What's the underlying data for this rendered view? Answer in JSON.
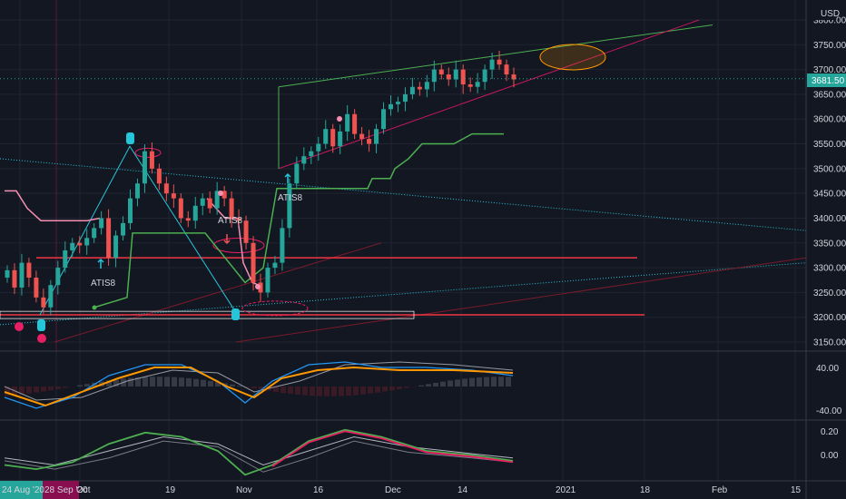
{
  "currency": "USD",
  "last_price": "3681.50",
  "main_axis_ticks": [
    "3800.00",
    "3750.00",
    "3700.00",
    "3650.00",
    "3600.00",
    "3550.00",
    "3500.00",
    "3450.00",
    "3400.00",
    "3350.00",
    "3300.00",
    "3250.00",
    "3200.00",
    "3150.00"
  ],
  "osc1_ticks": [
    "40.00",
    "-40.00"
  ],
  "osc2_ticks": [
    "0.20",
    "0.00"
  ],
  "time_ticks": [
    "24 Aug '20",
    "28 Sep '20",
    "Oct",
    "19",
    "Nov",
    "16",
    "Dec",
    "14",
    "2021",
    "18",
    "Feb",
    "15"
  ],
  "annotations": [
    "ATIS8",
    "ATIS8",
    "ATIS8"
  ],
  "colors": {
    "background": "#131722",
    "up": "#26a69a",
    "down": "#ef5350",
    "green_line": "#4caf50",
    "red_level": "#f23645",
    "teal_dots": "#26c6da",
    "pink_dots": "#e91e63",
    "orange": "#ff9800"
  },
  "chart_data": {
    "type": "candlestick",
    "title": "",
    "y_unit": "USD",
    "ylim": [
      3125,
      3830
    ],
    "x_range": [
      "2020-08-24",
      "2021-02-22"
    ],
    "grid": true,
    "last_price": 3681.5,
    "candles_close": [
      3295,
      3260,
      3310,
      3280,
      3240,
      3220,
      3265,
      3300,
      3335,
      3350,
      3345,
      3360,
      3380,
      3400,
      3320,
      3365,
      3390,
      3440,
      3470,
      3535,
      3500,
      3470,
      3450,
      3440,
      3400,
      3395,
      3425,
      3440,
      3420,
      3455,
      3440,
      3400,
      3395,
      3350,
      3270,
      3250,
      3300,
      3310,
      3380,
      3470,
      3510,
      3525,
      3535,
      3550,
      3580,
      3545,
      3575,
      3610,
      3570,
      3560,
      3550,
      3580,
      3620,
      3630,
      3635,
      3650,
      3665,
      3660,
      3675,
      3700,
      3690,
      3680,
      3700,
      3670,
      3665,
      3675,
      3700,
      3720,
      3710,
      3690,
      3680
    ],
    "horizontal_levels": [
      3320,
      3205
    ],
    "oscillator_1": {
      "ylim": [
        -60,
        60
      ],
      "ticks": [
        40,
        -40
      ]
    },
    "oscillator_2": {
      "ylim": [
        -0.15,
        0.25
      ],
      "ticks": [
        0.2,
        0.0
      ]
    }
  }
}
